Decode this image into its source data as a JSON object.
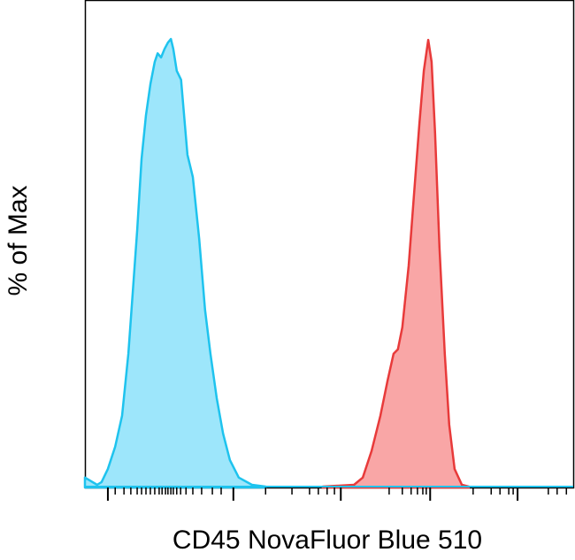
{
  "chart_data": {
    "type": "area",
    "y_label": "% of Max",
    "x_label": "CD45 NovaFluor Blue 510",
    "xlim": [
      0,
      1000
    ],
    "ylim": [
      0,
      108.7
    ],
    "xticks": [
      47,
      304,
      524,
      707,
      886
    ],
    "xminorticks": [
      62,
      80,
      94,
      107,
      116,
      125,
      134,
      143,
      152,
      158,
      165,
      170,
      176,
      181,
      188,
      196,
      207,
      221,
      239,
      261,
      279,
      370,
      424,
      460,
      478,
      496,
      511,
      623,
      650,
      668,
      681,
      692,
      699,
      795,
      832,
      850,
      868,
      877,
      949,
      967,
      986
    ],
    "series": [
      {
        "color": "#1ec3ee",
        "fill": "#9de6fb",
        "x": [
          0,
          25,
          34,
          47,
          62,
          76,
          89,
          98,
          107,
          116,
          125,
          134,
          143,
          149,
          156,
          163,
          170,
          176,
          181,
          188,
          197,
          203,
          210,
          221,
          234,
          246,
          257,
          270,
          283,
          297,
          315,
          342,
          370
        ],
        "values": [
          2.2,
          0.6,
          1.2,
          4.1,
          9.1,
          16,
          29.8,
          43.6,
          57.4,
          73.2,
          83,
          89.9,
          94.9,
          96.8,
          95.9,
          97.8,
          99.2,
          100,
          97.8,
          92.9,
          90.9,
          83,
          74.2,
          69.2,
          55.4,
          39.6,
          29.8,
          19.9,
          12,
          6.1,
          2.2,
          0.6,
          0.2
        ]
      },
      {
        "color": "#e83a3a",
        "fill": "#f9a6a6",
        "x": [
          487,
          551,
          569,
          587,
          605,
          620,
          632,
          641,
          650,
          663,
          674,
          685,
          694,
          703,
          710,
          717,
          726,
          737,
          746,
          757,
          772,
          786
        ],
        "values": [
          0.2,
          0.6,
          2.2,
          8.1,
          16,
          23.9,
          29.8,
          30.8,
          35.7,
          49.5,
          65.3,
          81.1,
          92.9,
          99.8,
          94.9,
          79.1,
          53.5,
          29.8,
          14,
          4.1,
          0.6,
          0.2
        ]
      }
    ]
  }
}
